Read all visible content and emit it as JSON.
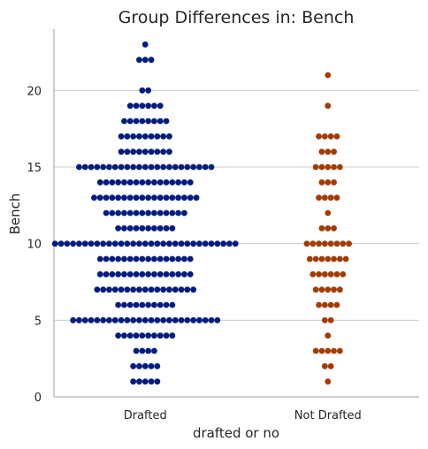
{
  "chart_data": {
    "type": "scatter",
    "subtype": "swarm",
    "title": "Group Differences in: Bench",
    "xlabel": "drafted or no",
    "ylabel": "Bench",
    "categories": [
      "Drafted",
      "Not Drafted"
    ],
    "ylim": [
      0,
      24
    ],
    "yticks": [
      0,
      5,
      10,
      15,
      20
    ],
    "grid": "horizontal",
    "series": [
      {
        "category": "Drafted",
        "color": "#001c7f",
        "counts": [
          {
            "y": 1,
            "n": 5
          },
          {
            "y": 2,
            "n": 5
          },
          {
            "y": 3,
            "n": 4
          },
          {
            "y": 4,
            "n": 10
          },
          {
            "y": 5,
            "n": 25
          },
          {
            "y": 6,
            "n": 10
          },
          {
            "y": 7,
            "n": 17
          },
          {
            "y": 8,
            "n": 16
          },
          {
            "y": 9,
            "n": 16
          },
          {
            "y": 10,
            "n": 31
          },
          {
            "y": 11,
            "n": 10
          },
          {
            "y": 12,
            "n": 14
          },
          {
            "y": 13,
            "n": 18
          },
          {
            "y": 14,
            "n": 16
          },
          {
            "y": 15,
            "n": 23
          },
          {
            "y": 16,
            "n": 9
          },
          {
            "y": 17,
            "n": 9
          },
          {
            "y": 18,
            "n": 8
          },
          {
            "y": 19,
            "n": 6
          },
          {
            "y": 20,
            "n": 2
          },
          {
            "y": 22,
            "n": 3
          },
          {
            "y": 23,
            "n": 1
          }
        ]
      },
      {
        "category": "Not Drafted",
        "color": "#a23b05",
        "counts": [
          {
            "y": 1,
            "n": 1
          },
          {
            "y": 2,
            "n": 2
          },
          {
            "y": 3,
            "n": 5
          },
          {
            "y": 4,
            "n": 1
          },
          {
            "y": 5,
            "n": 2
          },
          {
            "y": 6,
            "n": 4
          },
          {
            "y": 7,
            "n": 5
          },
          {
            "y": 8,
            "n": 6
          },
          {
            "y": 9,
            "n": 7
          },
          {
            "y": 10,
            "n": 8
          },
          {
            "y": 11,
            "n": 3
          },
          {
            "y": 12,
            "n": 1
          },
          {
            "y": 13,
            "n": 4
          },
          {
            "y": 14,
            "n": 3
          },
          {
            "y": 15,
            "n": 5
          },
          {
            "y": 16,
            "n": 3
          },
          {
            "y": 17,
            "n": 4
          },
          {
            "y": 19,
            "n": 1
          },
          {
            "y": 21,
            "n": 1
          }
        ]
      }
    ]
  }
}
